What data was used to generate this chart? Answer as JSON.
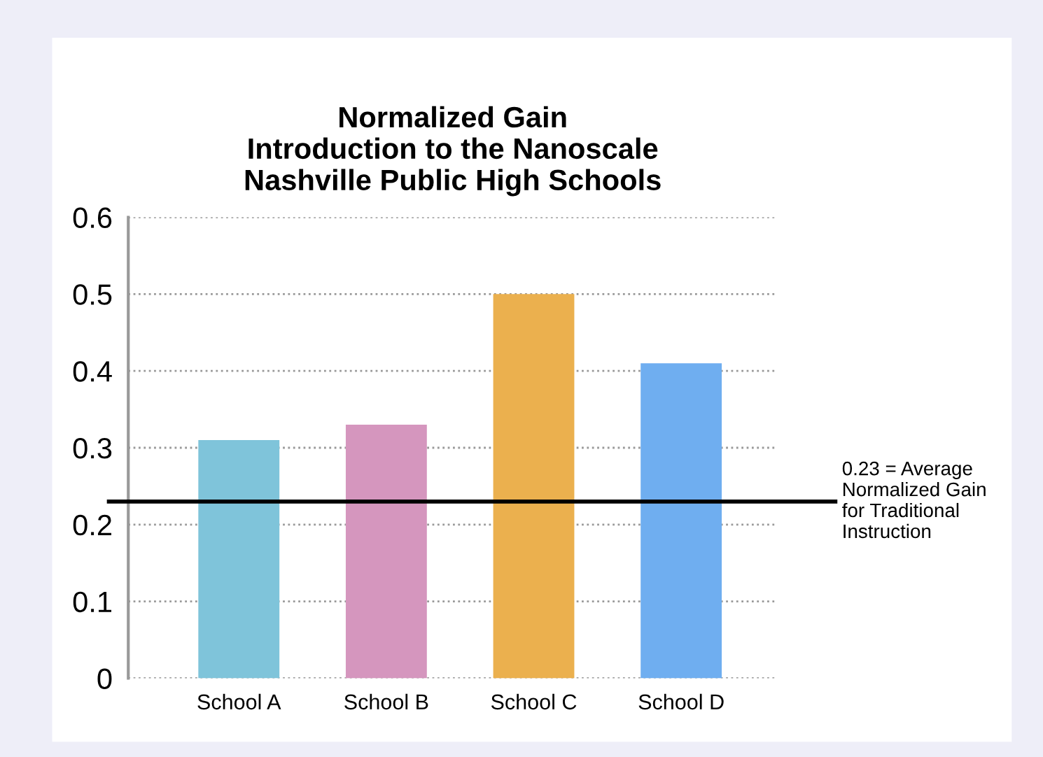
{
  "chart_data": {
    "type": "bar",
    "title": "Normalized Gain\nIntroduction to the Nanoscale\nNashville Public High Schools",
    "categories": [
      "School A",
      "School B",
      "School C",
      "School D"
    ],
    "values": [
      0.31,
      0.33,
      0.5,
      0.41
    ],
    "colors": [
      "#7fc4da",
      "#d596be",
      "#ebb04e",
      "#6faef0"
    ],
    "ylim": [
      0,
      0.6
    ],
    "yticks": [
      {
        "value": 0,
        "label": "0"
      },
      0.1,
      0.2,
      0.3,
      0.4,
      0.5,
      0.6
    ],
    "grid": "y",
    "ref_lines": [
      {
        "axis": "y",
        "value": 0.23,
        "label": "0.23 = Average\nNormalized Gain\nfor Traditional\nInstruction",
        "color": "#000000"
      }
    ]
  }
}
